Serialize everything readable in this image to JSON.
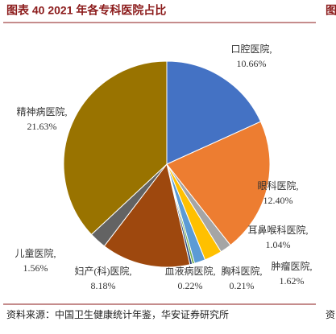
{
  "chart_data": {
    "type": "pie",
    "title": "图表 40 2021 年各专科医院占比",
    "source": "资料来源：中国卫生健康统计年鉴，华安证券研究所",
    "fragments": [
      "图",
      "资"
    ],
    "categories": [
      "口腔医院,",
      "眼科医院,",
      "耳鼻喉科医院,",
      "肿瘤医院,",
      null,
      "胸科医院,",
      "血液病医院,",
      "妇产(科)医院,",
      "儿童医院,",
      "精神病医院,"
    ],
    "values": [
      10.66,
      12.4,
      1.04,
      1.62,
      1.0,
      0.21,
      0.22,
      8.18,
      1.56,
      21.63
    ],
    "value_labels": [
      "10.66%",
      "12.40%",
      "1.04%",
      "1.62%",
      null,
      "0.21%",
      "0.22%",
      "8.18%",
      "1.56%",
      "21.63%"
    ],
    "colors": [
      "#4472c4",
      "#ed7d31",
      "#a5a5a5",
      "#ffc000",
      "#5b9bd5",
      "#70ad47",
      "#264478",
      "#9e480e",
      "#636363",
      "#997300"
    ]
  }
}
